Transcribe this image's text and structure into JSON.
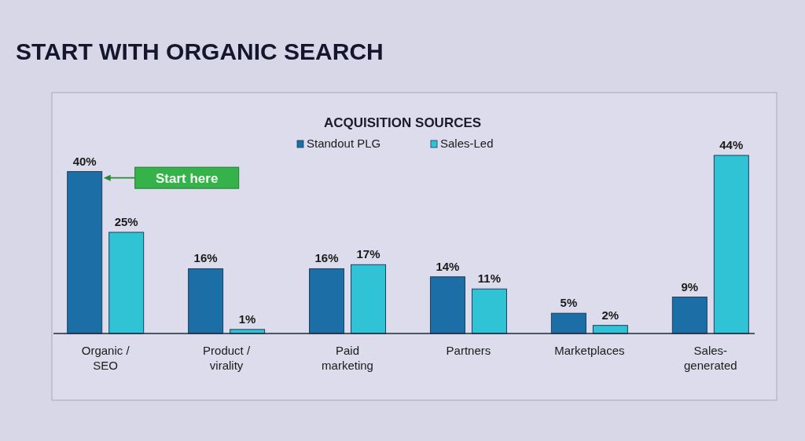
{
  "chart_data": {
    "type": "bar",
    "title": "START WITH ORGANIC SEARCH",
    "subtitle": "ACQUISITION SOURCES",
    "categories": [
      "Organic / SEO",
      "Product / virality",
      "Paid marketing",
      "Partners",
      "Marketplaces",
      "Sales-generated"
    ],
    "series": [
      {
        "name": "Standout PLG",
        "color": "#1b6ea6",
        "values": [
          40,
          16,
          16,
          14,
          5,
          9
        ],
        "value_labels": [
          "40%",
          "16%",
          "16%",
          "14%",
          "5%",
          "9%"
        ]
      },
      {
        "name": "Sales-Led",
        "color": "#2fc3d5",
        "values": [
          25,
          1,
          17,
          11,
          2,
          44
        ],
        "value_labels": [
          "25%",
          "1%",
          "17%",
          "11%",
          "2%",
          "44%"
        ]
      }
    ],
    "legend": "top",
    "grid": false,
    "annotations": [
      "Start here"
    ]
  }
}
